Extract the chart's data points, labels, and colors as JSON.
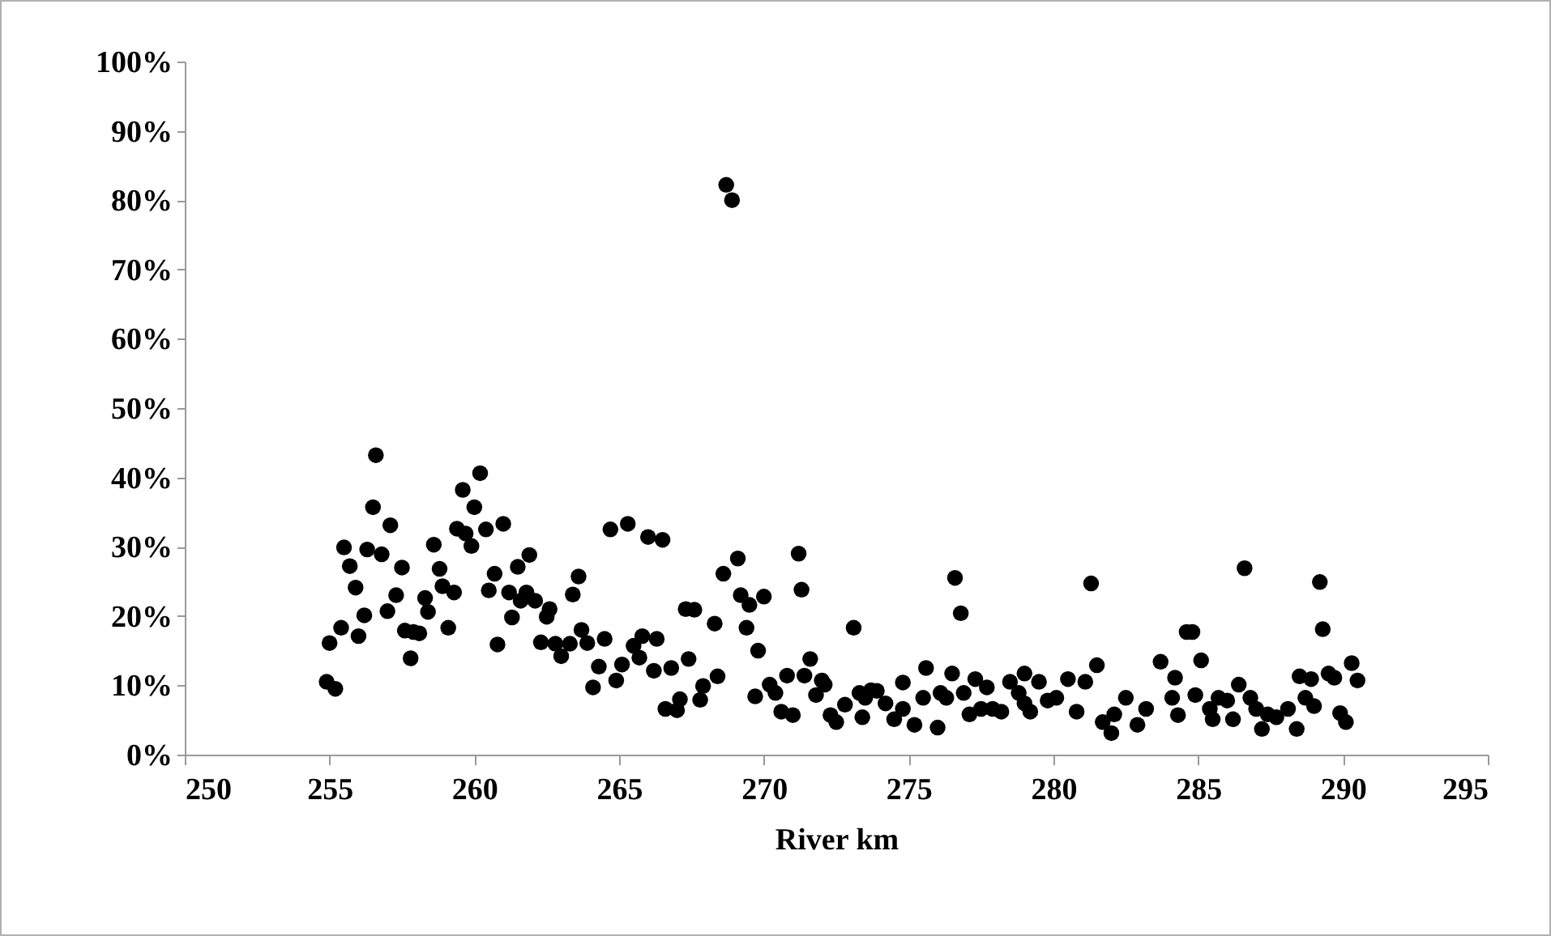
{
  "chart_data": {
    "type": "scatter",
    "xlabel": "River km",
    "marker": "circle",
    "color": "#000000",
    "xlim": [
      250,
      295
    ],
    "xticks": [
      250,
      255,
      260,
      265,
      270,
      275,
      280,
      285,
      290,
      295
    ],
    "ylim": [
      0,
      100
    ],
    "yticks": [
      {
        "value": 0,
        "label": "0%"
      },
      {
        "value": 10,
        "label": "10%"
      },
      {
        "value": 20,
        "label": "20%"
      },
      {
        "value": 30,
        "label": "30%"
      },
      {
        "value": 40,
        "label": "40%"
      },
      {
        "value": 50,
        "label": "50%"
      },
      {
        "value": 60,
        "label": "60%"
      },
      {
        "value": 70,
        "label": "70%"
      },
      {
        "value": 80,
        "label": "80%"
      },
      {
        "value": 90,
        "label": "90%"
      },
      {
        "value": 100,
        "label": "100%"
      }
    ],
    "grid": false,
    "legend": false,
    "x": [
      254.9,
      255.2,
      255.0,
      255.4,
      255.5,
      255.7,
      255.9,
      256.0,
      256.2,
      256.3,
      256.5,
      256.6,
      256.8,
      257.0,
      257.1,
      257.3,
      257.5,
      257.6,
      257.8,
      257.9,
      258.1,
      258.3,
      258.4,
      258.6,
      258.8,
      258.9,
      259.1,
      259.3,
      259.4,
      259.6,
      259.7,
      259.9,
      260.0,
      260.2,
      260.4,
      260.5,
      260.7,
      260.8,
      261.0,
      261.2,
      261.3,
      261.5,
      261.6,
      261.8,
      261.9,
      262.1,
      262.3,
      262.5,
      262.6,
      262.8,
      263.0,
      263.3,
      263.4,
      263.6,
      263.7,
      263.9,
      264.1,
      264.3,
      264.5,
      264.7,
      265.3,
      264.9,
      265.1,
      265.5,
      265.7,
      265.8,
      266.0,
      266.3,
      266.2,
      266.5,
      266.6,
      267.0,
      267.1,
      266.8,
      267.3,
      267.6,
      267.4,
      267.8,
      267.9,
      268.3,
      268.4,
      268.6,
      268.7,
      268.9,
      269.1,
      269.2,
      269.4,
      269.5,
      269.8,
      269.7,
      270.0,
      270.2,
      270.4,
      270.6,
      270.8,
      271.0,
      271.2,
      271.3,
      271.4,
      271.6,
      271.8,
      272.0,
      272.1,
      272.3,
      272.5,
      272.8,
      273.1,
      273.3,
      273.4,
      273.7,
      273.5,
      273.9,
      274.2,
      274.5,
      274.8,
      274.8,
      275.2,
      275.5,
      275.6,
      276.0,
      276.1,
      276.3,
      276.5,
      276.6,
      276.8,
      276.9,
      277.1,
      277.3,
      277.5,
      277.7,
      277.9,
      278.2,
      278.5,
      278.8,
      279.0,
      279.0,
      279.2,
      279.5,
      279.8,
      280.1,
      280.5,
      280.8,
      281.1,
      281.3,
      281.5,
      281.7,
      282.0,
      282.1,
      282.5,
      282.9,
      283.2,
      283.7,
      284.1,
      284.2,
      284.6,
      284.3,
      284.8,
      285.1,
      284.9,
      285.4,
      285.7,
      285.5,
      286.0,
      286.2,
      286.4,
      286.6,
      286.8,
      287.0,
      287.2,
      287.4,
      287.7,
      288.1,
      288.4,
      288.5,
      288.9,
      288.7,
      289.0,
      289.2,
      289.3,
      289.5,
      289.7,
      289.9,
      290.1,
      290.3,
      290.5
    ],
    "values": [
      10.5,
      9.5,
      16.1,
      18.3,
      29.9,
      27.2,
      24.1,
      17.1,
      20.1,
      29.6,
      35.7,
      43.2,
      28.9,
      20.7,
      33.1,
      23.0,
      27.0,
      17.9,
      13.9,
      17.7,
      17.5,
      22.6,
      20.6,
      30.3,
      26.8,
      24.3,
      18.3,
      23.4,
      32.6,
      38.2,
      31.9,
      30.1,
      35.7,
      40.6,
      32.5,
      23.7,
      26.1,
      15.9,
      33.3,
      23.4,
      19.8,
      27.1,
      22.2,
      23.4,
      28.8,
      22.2,
      16.2,
      19.9,
      21.0,
      16.0,
      14.2,
      16.0,
      23.1,
      25.7,
      18.0,
      16.1,
      9.7,
      12.7,
      16.7,
      32.5,
      33.3,
      10.7,
      13.0,
      15.7,
      14.0,
      17.1,
      31.4,
      16.7,
      12.1,
      31.0,
      6.6,
      6.4,
      8.0,
      12.5,
      21.0,
      20.9,
      13.8,
      7.9,
      9.9,
      18.9,
      11.3,
      26.1,
      82.2,
      80.0,
      28.3,
      23.0,
      18.3,
      21.6,
      15.0,
      8.4,
      22.8,
      10.1,
      8.9,
      6.2,
      11.4,
      5.7,
      29.0,
      23.8,
      11.4,
      13.8,
      8.6,
      10.7,
      10.1,
      5.7,
      4.7,
      7.2,
      18.3,
      8.9,
      5.4,
      9.3,
      8.2,
      9.2,
      7.4,
      5.1,
      6.6,
      10.4,
      4.3,
      8.2,
      12.5,
      3.9,
      8.9,
      8.2,
      11.7,
      25.5,
      20.4,
      8.9,
      5.8,
      10.9,
      6.6,
      9.7,
      6.6,
      6.2,
      10.5,
      8.9,
      11.7,
      7.4,
      6.2,
      10.5,
      7.8,
      8.2,
      10.9,
      6.2,
      10.5,
      24.7,
      12.9,
      4.7,
      3.1,
      5.8,
      8.2,
      4.3,
      6.6,
      13.4,
      8.2,
      11.1,
      17.7,
      5.7,
      17.7,
      13.6,
      8.6,
      6.6,
      8.2,
      5.1,
      7.8,
      5.1,
      10.1,
      26.9,
      8.2,
      6.6,
      3.7,
      5.8,
      5.4,
      6.6,
      3.7,
      11.3,
      10.9,
      8.2,
      7.0,
      24.9,
      18.1,
      11.7,
      11.1,
      6.0,
      4.7,
      13.2,
      10.7
    ]
  }
}
